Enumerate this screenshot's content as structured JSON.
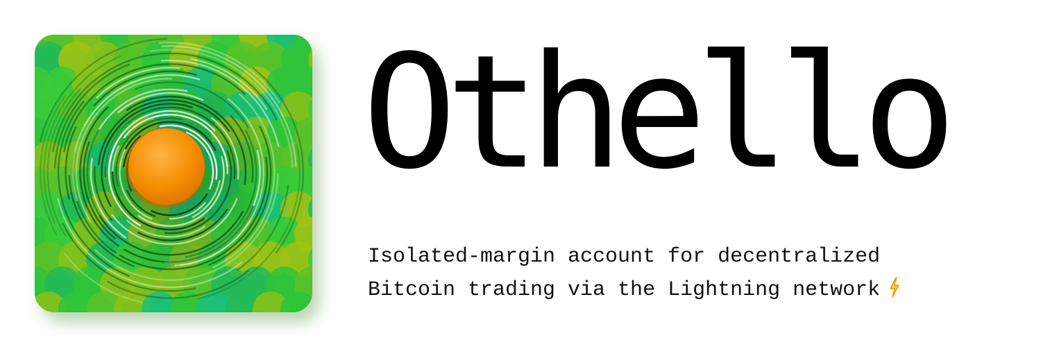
{
  "brand": {
    "title": "Othello",
    "tagline": [
      "Isolated-margin account for decentralized",
      "Bitcoin trading via the Lightning network"
    ]
  },
  "icons": {
    "logo": "othello-logo-icon",
    "bolt": "lightning-bolt-icon"
  },
  "colors": {
    "background": "#ffffff",
    "text": "#000000",
    "logo_green": "#2fc43a",
    "logo_lime": "#8cc11a",
    "logo_teal": "#18c080",
    "logo_orange": "#f08a00",
    "bolt": "#f5b50a"
  }
}
